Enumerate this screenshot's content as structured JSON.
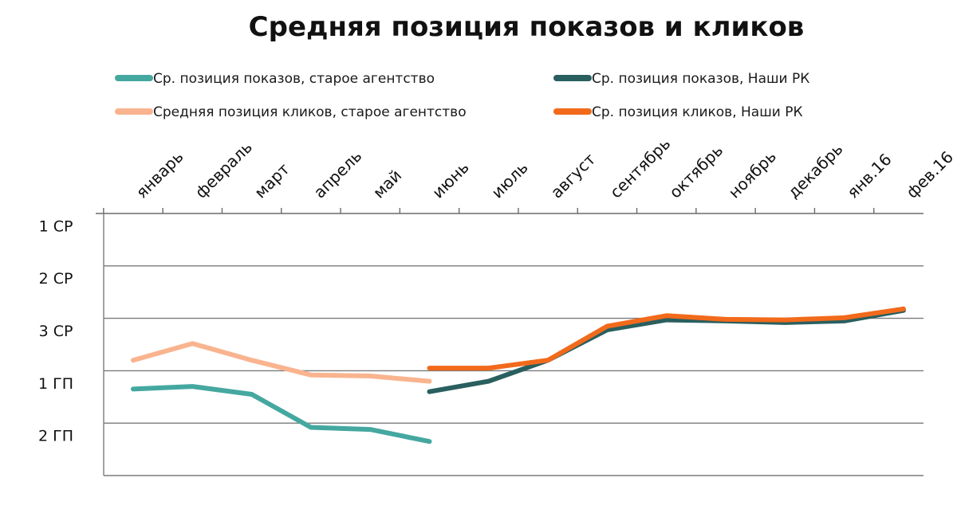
{
  "chart_data": {
    "type": "line",
    "title": "Средняя позиция показов и кликов",
    "xlabel": "",
    "ylabel": "",
    "categories": [
      "январь",
      "февраль",
      "март",
      "апрель",
      "май",
      "июнь",
      "июль",
      "август",
      "сентябрь",
      "октябрь",
      "ноябрь",
      "декабрь",
      "янв.16",
      "фев.16"
    ],
    "y_ticks": [
      "1 СР",
      "2 СР",
      "3 СР",
      "1 ГП",
      "2 ГП"
    ],
    "ylim": [
      0.5,
      5.5
    ],
    "y_direction": "downward",
    "axis_position": "top",
    "grid": true,
    "legend_position": "top",
    "series": [
      {
        "name": "Ср. позиция показов, старое агентство",
        "color": "#45a8a0",
        "values": [
          3.85,
          3.8,
          3.95,
          4.58,
          4.62,
          4.85,
          null,
          null,
          null,
          null,
          null,
          null,
          null,
          null
        ]
      },
      {
        "name": "Ср. позиция показов, Наши РК",
        "color": "#2a5f5f",
        "values": [
          null,
          null,
          null,
          null,
          null,
          3.9,
          3.7,
          3.3,
          2.72,
          2.53,
          2.55,
          2.58,
          2.55,
          2.35
        ]
      },
      {
        "name": "Средняя позиция кликов, старое агентство",
        "color": "#f9b48f",
        "values": [
          3.3,
          2.98,
          3.3,
          3.58,
          3.6,
          3.7,
          null,
          null,
          null,
          null,
          null,
          null,
          null,
          null
        ]
      },
      {
        "name": "Ср. позиция кликов, Наши РК",
        "color": "#f26a1b",
        "values": [
          null,
          null,
          null,
          null,
          null,
          3.45,
          3.45,
          3.3,
          2.65,
          2.45,
          2.52,
          2.53,
          2.49,
          2.32
        ]
      }
    ]
  }
}
